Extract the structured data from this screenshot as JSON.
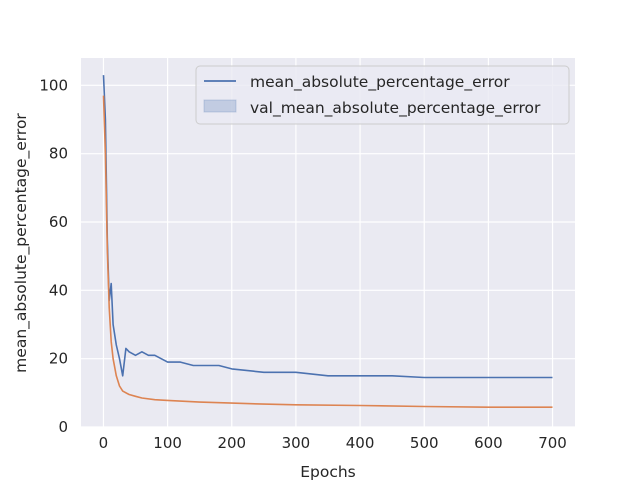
{
  "chart_data": {
    "type": "line",
    "title": "",
    "xlabel": "Epochs",
    "ylabel": "mean_absolute_percentage_error",
    "xlim": [
      -35,
      735
    ],
    "ylim": [
      0,
      108
    ],
    "xticks": [
      0,
      100,
      200,
      300,
      400,
      500,
      600,
      700
    ],
    "yticks": [
      0,
      20,
      40,
      60,
      80,
      100
    ],
    "grid": true,
    "legend": {
      "placement": "upper-right",
      "entries": [
        "mean_absolute_percentage_error",
        "val_mean_absolute_percentage_error"
      ]
    },
    "series": [
      {
        "name": "mean_absolute_percentage_error",
        "color": "#4c72b0",
        "x": [
          0,
          3,
          6,
          9,
          12,
          15,
          20,
          25,
          30,
          35,
          40,
          50,
          60,
          70,
          80,
          90,
          100,
          120,
          140,
          160,
          180,
          200,
          250,
          300,
          350,
          400,
          450,
          500,
          550,
          600,
          650,
          700
        ],
        "y": [
          103,
          90,
          55,
          37,
          42,
          30,
          24,
          20,
          15,
          23,
          22,
          21,
          22,
          21,
          21,
          20,
          19,
          19,
          18,
          18,
          18,
          17,
          16,
          16,
          15,
          15,
          15,
          14.5,
          14.5,
          14.5,
          14.5,
          14.5
        ]
      },
      {
        "name": "",
        "color": "#dd8452",
        "x": [
          0,
          3,
          6,
          9,
          12,
          15,
          20,
          25,
          30,
          40,
          50,
          60,
          80,
          100,
          150,
          200,
          250,
          300,
          400,
          500,
          600,
          700
        ],
        "y": [
          97,
          80,
          52,
          35,
          25,
          20,
          15,
          12,
          10.5,
          9.5,
          9,
          8.5,
          8,
          7.8,
          7.3,
          7,
          6.7,
          6.5,
          6.3,
          6,
          5.8,
          5.8
        ]
      }
    ]
  }
}
